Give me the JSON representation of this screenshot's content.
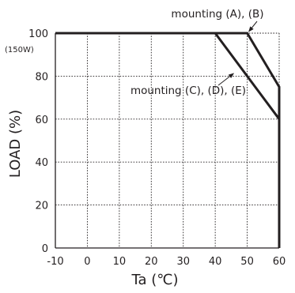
{
  "chart_data": {
    "type": "line",
    "xlabel": "Ta (℃)",
    "ylabel": "LOAD (%)",
    "xlim": [
      -10,
      60
    ],
    "ylim": [
      0,
      100
    ],
    "x_ticks": [
      -10,
      0,
      10,
      20,
      30,
      40,
      50,
      60
    ],
    "y_ticks": [
      0,
      20,
      40,
      60,
      80,
      100
    ],
    "y_tick_100_note": "(150W)",
    "grid": true,
    "series": [
      {
        "name": "mounting (A), (B)",
        "x": [
          -10,
          50,
          60,
          60
        ],
        "y": [
          100,
          100,
          75,
          0
        ]
      },
      {
        "name": "mounting (C), (D), (E)",
        "x": [
          -10,
          40,
          60,
          60
        ],
        "y": [
          100,
          100,
          60,
          0
        ]
      }
    ],
    "annotations": [
      {
        "text": "mounting (A), (B)",
        "points_to": [
          50,
          100
        ]
      },
      {
        "text": "mounting (C), (D), (E)",
        "points_to": [
          46,
          82
        ]
      }
    ]
  }
}
